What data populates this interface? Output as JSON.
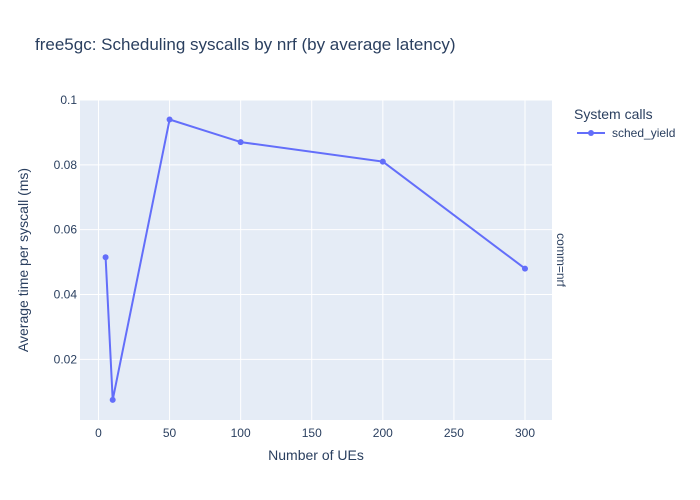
{
  "chart_data": {
    "type": "line",
    "title": "free5gc: Scheduling syscalls by nrf (by average latency)",
    "xlabel": "Number of UEs",
    "ylabel": "Average time per syscall (ms)",
    "xlim": [
      -13,
      319
    ],
    "ylim": [
      0.0013,
      0.1
    ],
    "x_ticks": [
      0,
      50,
      100,
      150,
      200,
      250,
      300
    ],
    "y_ticks": [
      0.02,
      0.04,
      0.06,
      0.08,
      0.1
    ],
    "y_tick_labels": [
      "0.02",
      "0.04",
      "0.06",
      "0.08",
      "0.1"
    ],
    "grid": true,
    "legend_title": "System calls",
    "legend_position": "top-right",
    "facet_label": "comm=nrf",
    "series": [
      {
        "name": "sched_yield",
        "color": "#636efa",
        "x": [
          5,
          10,
          50,
          100,
          200,
          300
        ],
        "y": [
          0.0515,
          0.0075,
          0.094,
          0.087,
          0.081,
          0.048
        ]
      }
    ]
  },
  "colors": {
    "plot_background": "#e5ecf6",
    "gridline": "#ffffff",
    "text": "#2a3f5f"
  }
}
